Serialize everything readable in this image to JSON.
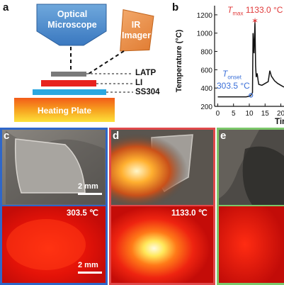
{
  "panel_a": {
    "letter": "a",
    "microscope_label": "Optical Microscope",
    "imager_label": "IR Imager",
    "layers": [
      "LATP",
      "LI",
      "SS304"
    ],
    "heating_plate_label": "Heating Plate"
  },
  "panel_b": {
    "letter": "b",
    "ylabel": "Temperature (°C)",
    "xlabel_partial": "Tim",
    "tmax_prefix": "T",
    "tmax_sub": "max",
    "tmax_value": "1133.0 °C",
    "tonset_prefix": "T",
    "tonset_sub": "onset",
    "tonset_value": "303.5 °C",
    "yticks": [
      "1200",
      "1000",
      "800",
      "600",
      "400",
      "200"
    ],
    "xticks": [
      "0",
      "5",
      "10",
      "15",
      "20"
    ],
    "colors": {
      "tmax": "#e03a3a",
      "tonset": "#3a6fd8",
      "line": "#111111"
    }
  },
  "chart_data": {
    "type": "line",
    "title": "",
    "xlabel": "Tim",
    "ylabel": "Temperature (°C)",
    "xlim": [
      -1,
      21
    ],
    "ylim": [
      200,
      1300
    ],
    "series": [
      {
        "x": [
          0,
          9,
          10,
          10.5,
          11,
          11.2,
          11.5,
          11.8,
          12,
          12.2,
          12.5,
          12.8,
          13,
          14,
          15,
          16,
          16.5,
          17,
          18,
          19,
          20,
          21
        ],
        "values": [
          303.5,
          303.5,
          310,
          320,
          350,
          1000,
          780,
          1133,
          640,
          520,
          560,
          480,
          440,
          430,
          450,
          470,
          590,
          530,
          480,
          450,
          430,
          410
        ]
      }
    ]
  },
  "panel_c": {
    "letter": "c",
    "scalebar_top": "2 mm",
    "temp": "303.5 ℃",
    "scalebar_bottom": "2 mm"
  },
  "panel_d": {
    "letter": "d",
    "temp": "1133.0 ℃"
  },
  "panel_e": {
    "letter": "e"
  }
}
